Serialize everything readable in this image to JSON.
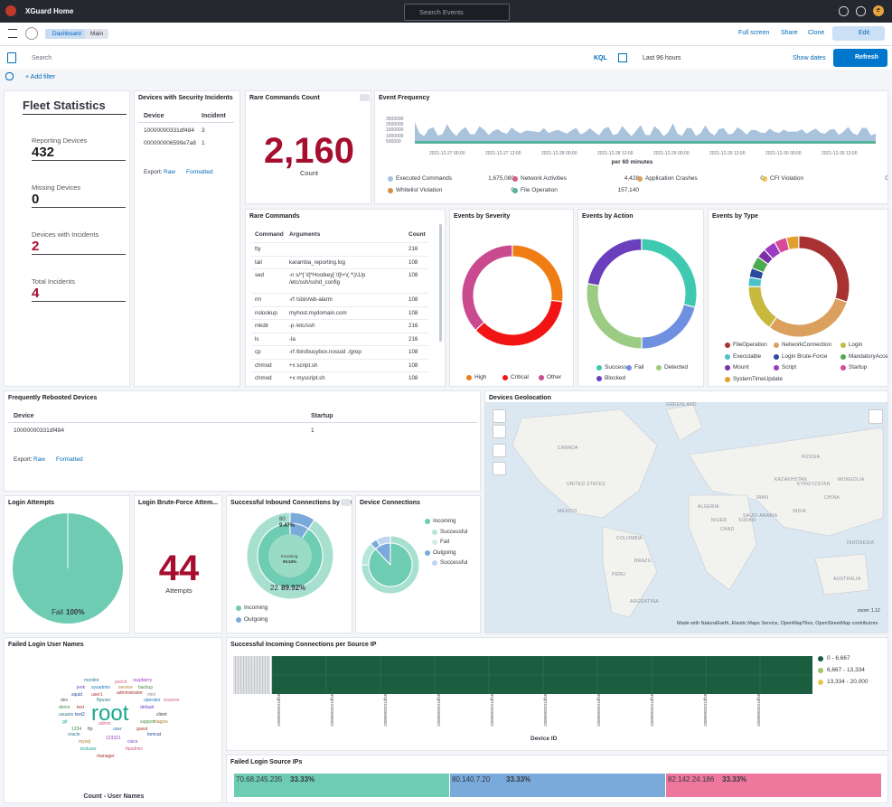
{
  "topbar": {
    "brand": "XGuard Home",
    "search": "Search Events",
    "avatar": "e"
  },
  "nav": {
    "breadcrumbs": [
      "Dashboard",
      "Main"
    ],
    "actions": [
      "Full screen",
      "Share",
      "Clone"
    ],
    "edit": "Edit"
  },
  "query": {
    "search": "Search",
    "language": "KQL",
    "time": "Last 96 hours",
    "show_dates": "Show dates",
    "refresh": "Refresh",
    "add_filter": "+ Add filter"
  },
  "panels": {
    "fleet": {
      "title": "Fleet Statistics",
      "stats": [
        {
          "label": "Reporting Devices",
          "value": 432
        },
        {
          "label": "Missing Devices",
          "value": 0
        },
        {
          "label": "Devices with Incidents",
          "value": 2
        },
        {
          "label": "Total Incidents",
          "value": 4
        }
      ]
    },
    "incidents": {
      "title": "Devices with Security Incidents",
      "columns": [
        "Device",
        "Incident"
      ],
      "rows": [
        [
          "10000000331df484",
          3
        ],
        [
          "000000006599e7a8",
          1
        ]
      ],
      "export": {
        "label": "Export:",
        "raw": "Raw",
        "formatted": "Formatted"
      }
    },
    "rare_count": {
      "title": "Rare Commands Count",
      "value": "2,160",
      "label": "Count"
    },
    "frequency": {
      "title": "Event Frequency",
      "yticks": [
        "3500000",
        "2500000",
        "1500000",
        "1000000",
        "500000"
      ],
      "xticks": [
        "2021-12-27 00:00",
        "2021-12-27 12:00",
        "2021-12-28 00:00",
        "2021-12-28 12:00",
        "2021-12-29 00:00",
        "2021-12-29 12:00",
        "2021-12-30 00:00",
        "2021-12-30 12:00"
      ],
      "xlabel": "per 60 minutes",
      "legend": [
        {
          "name": "Executed Commands",
          "value": "1,675,080",
          "color": "#a9c3dd"
        },
        {
          "name": "Network Activities",
          "value": "4,428",
          "color": "#d36086"
        },
        {
          "name": "Application Crashes",
          "value": "0",
          "color": "#d6a35c"
        },
        {
          "name": "CFI Violation",
          "value": "0",
          "color": "#e7c55a"
        },
        {
          "name": "Whitelist Violation",
          "value": "0",
          "color": "#da8b45"
        },
        {
          "name": "File Operation",
          "value": "157,140",
          "color": "#54b399"
        }
      ]
    },
    "rare": {
      "title": "Rare Commands",
      "columns": [
        "Command",
        "Arguments",
        "Count"
      ],
      "rows": [
        [
          "tty",
          "",
          216
        ],
        [
          "tail",
          "karamba_reporting.log",
          108
        ],
        [
          "sed",
          "-n s/^[ \\t]*Hostkey[ \\t]\\+\\(.*\\)\\1/p /etc/ssh/sshd_config",
          108
        ],
        [
          "rm",
          "-rf /sbin/wb-alarm",
          108
        ],
        [
          "nslookup",
          "myhost.mydomain.com",
          108
        ],
        [
          "mkdir",
          "-p /etc/ssh",
          216
        ],
        [
          "ls",
          "-la",
          216
        ],
        [
          "cp",
          "-rf /bin/busybox.nosuid ./grep",
          108
        ],
        [
          "chmod",
          "+x script.sh",
          108
        ],
        [
          "chmod",
          "+x myscript.sh",
          108
        ]
      ]
    },
    "severity": {
      "title": "Events by Severity",
      "legend": [
        {
          "name": "High",
          "color": "#f07d14"
        },
        {
          "name": "Critical",
          "color": "#f21414"
        },
        {
          "name": "Other",
          "color": "#c94a8e"
        }
      ]
    },
    "action": {
      "title": "Events by Action",
      "legend": [
        {
          "name": "Success",
          "color": "#3ec9b0"
        },
        {
          "name": "Fail",
          "color": "#6f8fe0"
        },
        {
          "name": "Detected",
          "color": "#9ccc83"
        },
        {
          "name": "Blocked",
          "color": "#6a3ebd"
        }
      ]
    },
    "type": {
      "title": "Events by Type",
      "legend": [
        {
          "name": "FileOperation",
          "color": "#a83232"
        },
        {
          "name": "NetworkConnection",
          "color": "#dba05e"
        },
        {
          "name": "Login",
          "color": "#c8b83e"
        },
        {
          "name": "Executable",
          "color": "#49c2c9"
        },
        {
          "name": "Login Brute-Force",
          "color": "#2a4aa0"
        },
        {
          "name": "MandatoryAccessCo...",
          "color": "#4cab4c"
        },
        {
          "name": "Mount",
          "color": "#7a2fa5"
        },
        {
          "name": "Script",
          "color": "#9c3cc2"
        },
        {
          "name": "Startup",
          "color": "#d74a9a"
        },
        {
          "name": "SystemTimeUpdate",
          "color": "#e0a030"
        }
      ]
    },
    "rebooted": {
      "title": "Frequently Rebooted Devices",
      "columns": [
        "Device",
        "Startup"
      ],
      "rows": [
        [
          "10000000331df484",
          1
        ]
      ],
      "export": {
        "label": "Export:",
        "raw": "Raw",
        "formatted": "Formatted"
      }
    },
    "geo": {
      "title": "Devices Geolocation",
      "labels": [
        "GREENLAND",
        "CANADA",
        "UNITED STATES",
        "MEXICO",
        "COLOMBIA",
        "BRAZIL",
        "PERU",
        "ARGENTINA",
        "ALGERIA",
        "NIGER",
        "SUDAN",
        "CHAD",
        "RUSSIA",
        "KAZAKHSTAN",
        "CHINA",
        "INDIA",
        "MONGOLIA",
        "IRAN",
        "SAUDI ARABIA",
        "AUSTRALIA",
        "INDONESIA",
        "KYRGYZSTAN"
      ],
      "attribution": "Made with NaturalEarth, Elastic Maps Service, OpenMapTiles, OpenStreetMap contributors",
      "zoom": "zoom: 1.12"
    },
    "login": {
      "title": "Login Attempts",
      "label": "Fail",
      "value": "100%"
    },
    "brute": {
      "title": "Login Brute-Force Attem...",
      "value": 44,
      "label": "Attempts"
    },
    "inbound": {
      "title": "Successful Inbound Connections by Port",
      "outer_port": "80",
      "outer_pct": "9.47%",
      "inner_label": "Incoming",
      "inner_pct": "90.53%",
      "port": "22",
      "pct": "89.92%",
      "legend": [
        {
          "name": "Incoming",
          "color": "#6dccb1"
        },
        {
          "name": "Outgoing",
          "color": "#79aad9"
        }
      ]
    },
    "connections": {
      "title": "Device Connections",
      "legend": [
        {
          "name": "Incoming",
          "color": "#6dccb1"
        },
        {
          "name": "Successful",
          "color": "#b6e6d8"
        },
        {
          "name": "Fail",
          "color": "#d0ece4"
        },
        {
          "name": "Outgoing",
          "color": "#79aad9"
        },
        {
          "name": "Successful",
          "color": "#c0d6ee"
        }
      ]
    },
    "usernames": {
      "title": "Failed Login User Names",
      "words": [
        "root",
        "monitor",
        "pencil",
        "raspberry",
        "jenk",
        "sysadmin",
        "service",
        "backup",
        "squid",
        "user1",
        "administrator",
        "mini",
        "dev",
        "ftpuser",
        "operator",
        "scanner",
        "demo",
        "test",
        "default",
        "test2",
        "usuario",
        "git",
        "client",
        "nagios",
        "1234",
        "ftp",
        "admin",
        "user",
        "guest",
        "123321",
        "cisco",
        "tomcat",
        "mysql",
        "testuser",
        "ftpadmin",
        "manager",
        "support",
        "oracle"
      ],
      "footer": "Count - User Names"
    },
    "per_ip": {
      "title": "Successful Incoming Connections per Source IP",
      "legend": [
        {
          "name": "0 - 6,667",
          "color": "#1a5e3f"
        },
        {
          "name": "6,667 - 13,334",
          "color": "#9ac868"
        },
        {
          "name": "13,334 - 20,000",
          "color": "#e6c64a"
        }
      ],
      "xticks": [
        "10000000331df484",
        "10000000331df484",
        "10000000331df484",
        "10000000331df484",
        "10000000331df484",
        "10000000331df484",
        "10000000331df484",
        "10000000331df484",
        "10000000331df484",
        "10000000331df484"
      ],
      "xlabel": "Device ID"
    },
    "source_ips": {
      "title": "Failed Login Source IPs",
      "bars": [
        {
          "ip": "70.68.245.235",
          "pct": "33.33%",
          "color": "#6dccb1"
        },
        {
          "ip": "80.140.7.20",
          "pct": "33.33%",
          "color": "#79aad9"
        },
        {
          "ip": "82.142.24.186",
          "pct": "33.33%",
          "color": "#ee789d"
        }
      ]
    }
  }
}
